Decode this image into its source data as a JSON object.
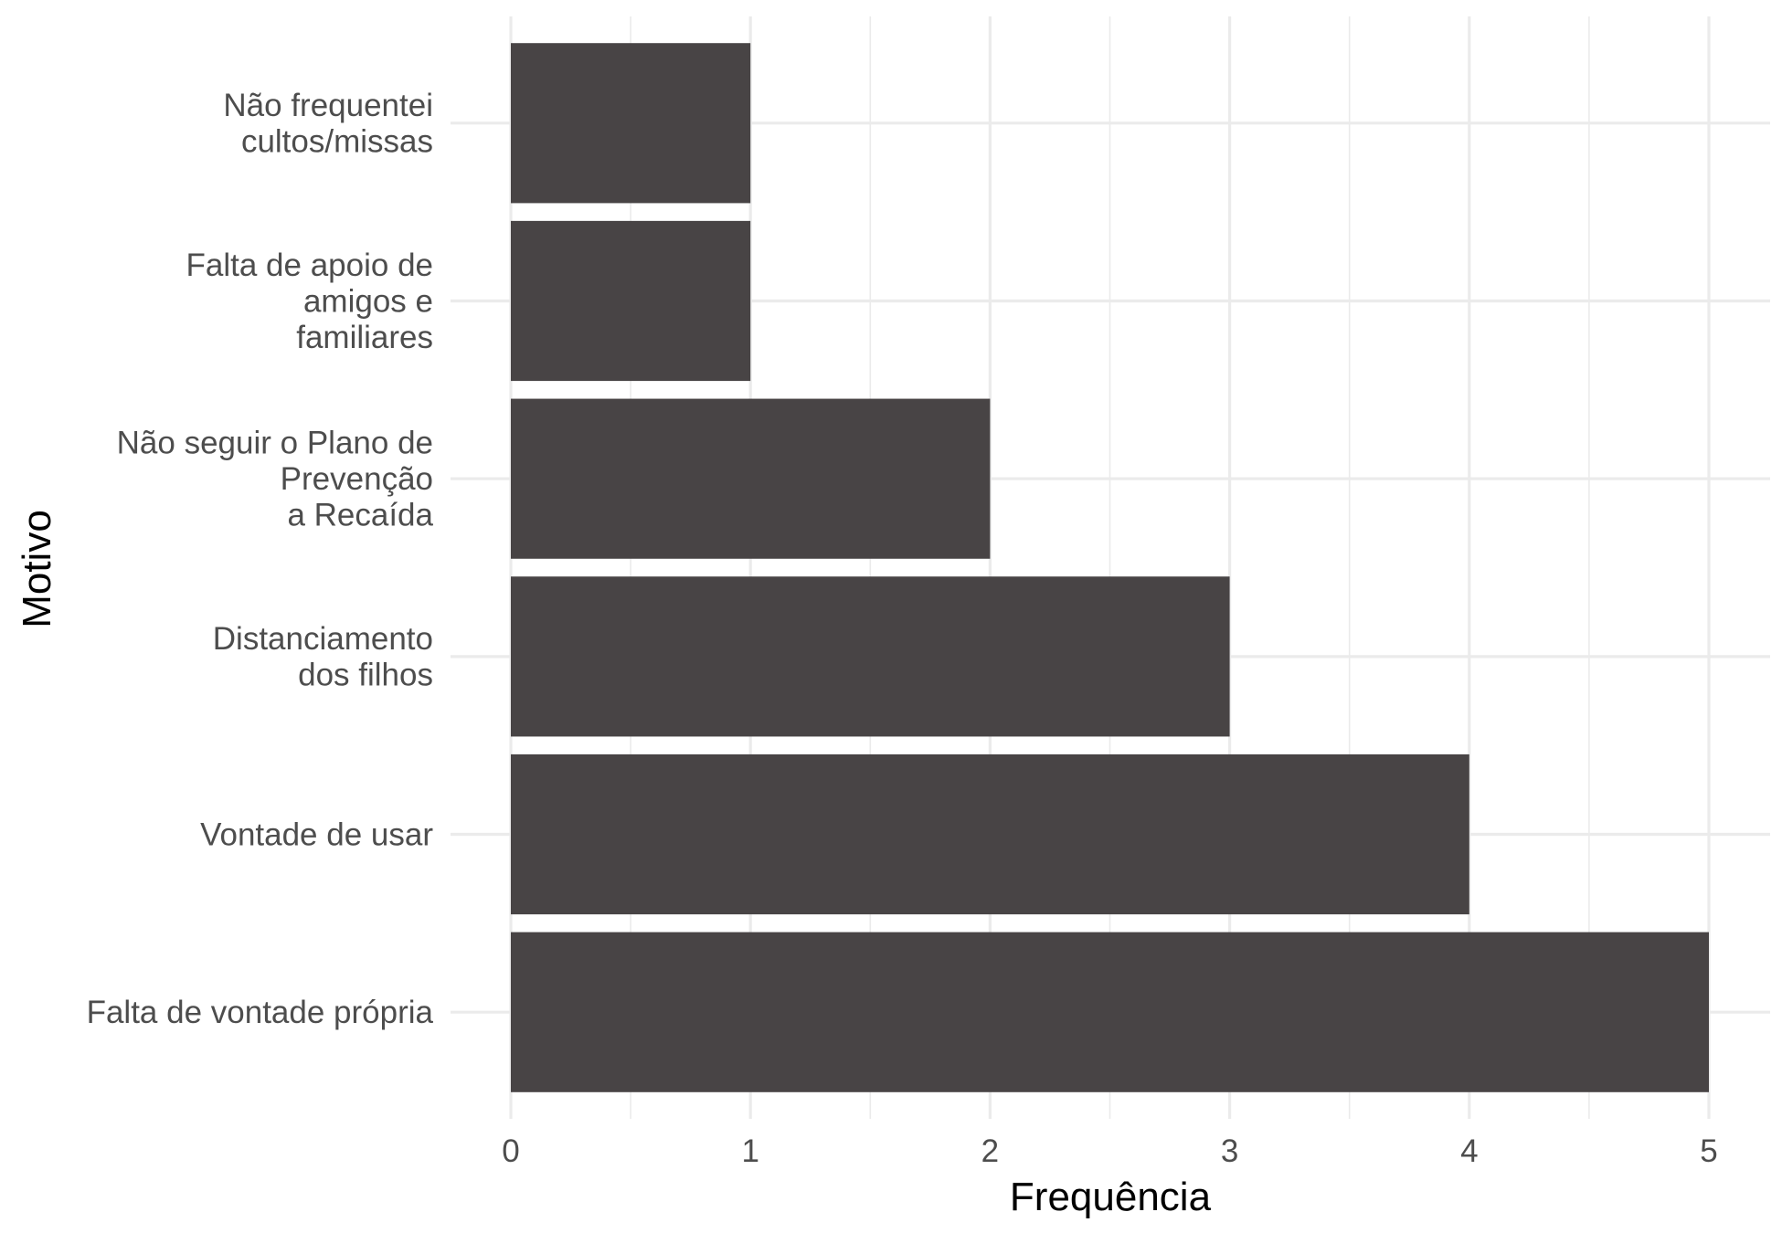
{
  "chart_data": {
    "type": "bar",
    "orientation": "horizontal",
    "xlabel": "Frequência",
    "ylabel": "Motivo",
    "xlim": [
      0,
      5
    ],
    "x_ticks": [
      "0",
      "1",
      "2",
      "3",
      "4",
      "5"
    ],
    "grid": true,
    "bar_color": "#484445",
    "categories": [
      {
        "label_lines": [
          "Não frequentei",
          "cultos/missas"
        ],
        "value": 1
      },
      {
        "label_lines": [
          "Falta de apoio de",
          "amigos e",
          "familiares"
        ],
        "value": 1
      },
      {
        "label_lines": [
          "Não seguir o Plano de",
          "Prevenção",
          "a Recaída"
        ],
        "value": 2
      },
      {
        "label_lines": [
          "Distanciamento",
          "dos filhos"
        ],
        "value": 3
      },
      {
        "label_lines": [
          "Vontade de usar"
        ],
        "value": 4
      },
      {
        "label_lines": [
          "Falta de vontade própria"
        ],
        "value": 5
      }
    ]
  }
}
